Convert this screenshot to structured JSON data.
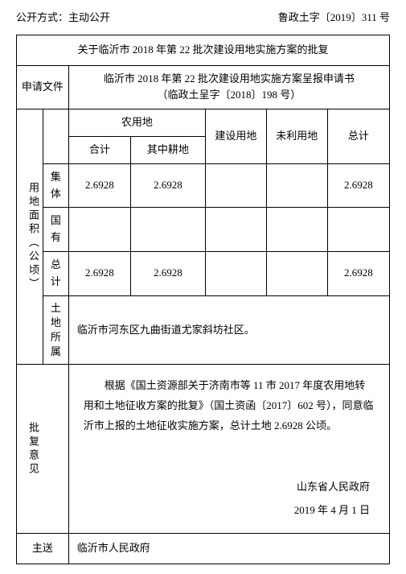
{
  "header": {
    "disclosure_label": "公开方式：",
    "disclosure_value": "主动公开",
    "doc_number": "鲁政土字〔2019〕311 号"
  },
  "title": "关于临沂市 2018 年第 22 批次建设用地实施方案的批复",
  "application": {
    "label": "申请文件",
    "text_line1": "临沂市 2018 年第 22 批次建设用地实施方案呈报申请书",
    "text_line2": "（临政土呈字〔2018〕198 号）"
  },
  "area": {
    "section_label": "用地面积（公顷）",
    "col_agri": "农用地",
    "col_agri_total": "合计",
    "col_agri_arable": "其中耕地",
    "col_construction": "建设用地",
    "col_unused": "未利用地",
    "col_total": "总计",
    "row_collective": "集体",
    "row_state": "国有",
    "row_total": "总计",
    "collective": {
      "agri_total": "2.6928",
      "agri_arable": "2.6928",
      "construction": "",
      "unused": "",
      "total": "2.6928"
    },
    "state": {
      "agri_total": "",
      "agri_arable": "",
      "construction": "",
      "unused": "",
      "total": ""
    },
    "total": {
      "agri_total": "2.6928",
      "agri_arable": "2.6928",
      "construction": "",
      "unused": "",
      "total": "2.6928"
    }
  },
  "location": {
    "label": "土地所属",
    "text": "临沂市河东区九曲街道尤家斜坊社区。"
  },
  "opinion": {
    "label": "批复意见",
    "body": "根据《国土资源部关于济南市等 11 市 2017 年度农用地转用和土地征收方案的批复》（国土资函〔2017〕602 号），同意临沂市上报的土地征收实施方案，总计土地 2.6928 公顷。",
    "signer": "山东省人民政府",
    "date": "2019 年 4 月 1 日"
  },
  "cc": {
    "label": "主送",
    "text": "临沂市人民政府"
  }
}
